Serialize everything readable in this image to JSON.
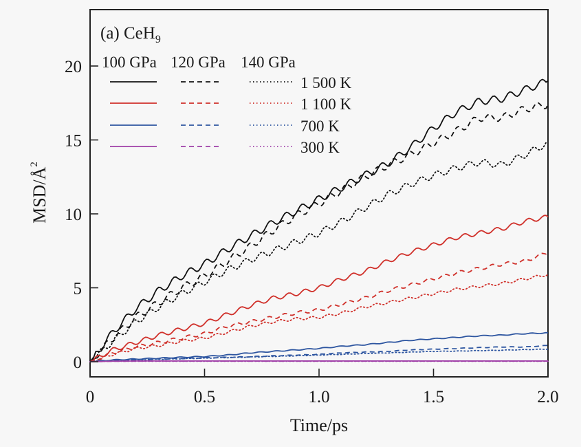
{
  "chart_data": {
    "type": "line",
    "panel_label": "(a) CeH",
    "panel_label_sub": "9",
    "xlabel": "Time/ps",
    "ylabel": "MSD/Å",
    "ylabel_sup": "2",
    "xlim": [
      0,
      2.0
    ],
    "ylim": [
      -0.5,
      23.5
    ],
    "xticks": [
      0,
      0.5,
      1.0,
      1.5,
      2.0
    ],
    "xtick_labels": [
      "0",
      "0.5",
      "1.0",
      "1.5",
      "2.0"
    ],
    "yticks": [
      0,
      5,
      10,
      15,
      20
    ],
    "ytick_labels": [
      "0",
      "5",
      "10",
      "15",
      "20"
    ],
    "grid": false,
    "legend": {
      "placement": "top-left",
      "pressure_headers": [
        "100 GPa",
        "120 GPa",
        "140 GPa"
      ],
      "temperature_labels": [
        "1 500 K",
        "1 100 K",
        "700 K",
        "300 K"
      ]
    },
    "x": [
      0,
      0.1,
      0.2,
      0.3,
      0.4,
      0.5,
      0.6,
      0.7,
      0.8,
      0.9,
      1.0,
      1.1,
      1.2,
      1.3,
      1.4,
      1.5,
      1.6,
      1.7,
      1.8,
      1.9,
      2.0
    ],
    "series": [
      {
        "name": "1 500 K, 100 GPa",
        "temperature": "1 500 K",
        "pressure": "100 GPa",
        "color": "#111111",
        "style": "solid",
        "values": [
          0,
          2.0,
          3.6,
          4.8,
          5.8,
          6.6,
          7.6,
          8.5,
          9.4,
          10.2,
          11.0,
          11.8,
          12.6,
          13.4,
          14.5,
          15.8,
          16.9,
          17.6,
          17.8,
          18.4,
          19.0
        ]
      },
      {
        "name": "1 500 K, 120 GPa",
        "temperature": "1 500 K",
        "pressure": "120 GPa",
        "color": "#111111",
        "style": "dashed",
        "values": [
          0,
          1.6,
          3.0,
          4.0,
          5.0,
          5.8,
          6.8,
          7.8,
          8.9,
          9.9,
          10.7,
          11.6,
          12.5,
          13.3,
          14.0,
          14.8,
          15.6,
          16.5,
          16.5,
          17.1,
          17.4
        ]
      },
      {
        "name": "1 500 K, 140 GPa",
        "temperature": "1 500 K",
        "pressure": "140 GPa",
        "color": "#111111",
        "style": "dotted",
        "values": [
          0,
          1.4,
          2.7,
          3.7,
          4.6,
          5.4,
          6.2,
          6.9,
          7.5,
          8.1,
          8.7,
          9.5,
          10.4,
          11.3,
          12.0,
          12.6,
          13.1,
          13.5,
          13.3,
          14.0,
          14.8
        ]
      },
      {
        "name": "1 100 K, 100 GPa",
        "temperature": "1 100 K",
        "pressure": "100 GPa",
        "color": "#d0302a",
        "style": "solid",
        "values": [
          0,
          0.8,
          1.3,
          1.8,
          2.2,
          2.6,
          3.2,
          3.8,
          4.3,
          4.6,
          5.0,
          5.6,
          6.1,
          6.8,
          7.4,
          7.9,
          8.4,
          8.7,
          9.0,
          9.5,
          9.8
        ]
      },
      {
        "name": "1 100 K, 120 GPa",
        "temperature": "1 100 K",
        "pressure": "120 GPa",
        "color": "#d0302a",
        "style": "dashed",
        "values": [
          0,
          0.6,
          1.0,
          1.3,
          1.6,
          1.9,
          2.4,
          2.7,
          3.0,
          3.3,
          3.5,
          3.9,
          4.3,
          4.8,
          5.2,
          5.6,
          6.0,
          6.3,
          6.6,
          6.8,
          7.4
        ]
      },
      {
        "name": "1 100 K, 140 GPa",
        "temperature": "1 100 K",
        "pressure": "140 GPa",
        "color": "#d0302a",
        "style": "dotted",
        "values": [
          0,
          0.5,
          0.9,
          1.1,
          1.4,
          1.6,
          2.0,
          2.4,
          2.7,
          2.9,
          3.0,
          3.3,
          3.7,
          4.0,
          4.3,
          4.6,
          4.9,
          5.1,
          5.3,
          5.6,
          5.9
        ]
      },
      {
        "name": "700 K, 100 GPa",
        "temperature": "700 K",
        "pressure": "100 GPa",
        "color": "#2d55a0",
        "style": "solid",
        "values": [
          0,
          0.12,
          0.18,
          0.24,
          0.3,
          0.35,
          0.45,
          0.6,
          0.7,
          0.8,
          0.9,
          1.05,
          1.15,
          1.3,
          1.45,
          1.55,
          1.65,
          1.75,
          1.8,
          1.9,
          1.95
        ]
      },
      {
        "name": "700 K, 120 GPa",
        "temperature": "700 K",
        "pressure": "120 GPa",
        "color": "#2d55a0",
        "style": "dashed",
        "values": [
          0,
          0.08,
          0.14,
          0.18,
          0.22,
          0.26,
          0.3,
          0.34,
          0.4,
          0.45,
          0.5,
          0.6,
          0.65,
          0.7,
          0.8,
          0.85,
          0.9,
          0.95,
          1.0,
          1.0,
          1.1
        ]
      },
      {
        "name": "700 K, 140 GPa",
        "temperature": "700 K",
        "pressure": "140 GPa",
        "color": "#2d55a0",
        "style": "dotted",
        "values": [
          0,
          0.07,
          0.12,
          0.16,
          0.2,
          0.24,
          0.28,
          0.32,
          0.36,
          0.4,
          0.45,
          0.5,
          0.55,
          0.6,
          0.65,
          0.7,
          0.72,
          0.75,
          0.78,
          0.82,
          0.85
        ]
      },
      {
        "name": "300 K, 100 GPa",
        "temperature": "300 K",
        "pressure": "100 GPa",
        "color": "#a040a8",
        "style": "solid",
        "values": [
          0,
          0.04,
          0.05,
          0.05,
          0.05,
          0.05,
          0.05,
          0.05,
          0.05,
          0.05,
          0.05,
          0.05,
          0.05,
          0.05,
          0.05,
          0.05,
          0.05,
          0.05,
          0.05,
          0.05,
          0.05
        ]
      },
      {
        "name": "300 K, 120 GPa",
        "temperature": "300 K",
        "pressure": "120 GPa",
        "color": "#a040a8",
        "style": "dashed",
        "values": [
          0,
          0.03,
          0.04,
          0.04,
          0.04,
          0.04,
          0.04,
          0.04,
          0.04,
          0.04,
          0.04,
          0.04,
          0.04,
          0.04,
          0.04,
          0.04,
          0.04,
          0.04,
          0.04,
          0.04,
          0.04
        ]
      },
      {
        "name": "300 K, 140 GPa",
        "temperature": "300 K",
        "pressure": "140 GPa",
        "color": "#a040a8",
        "style": "dotted",
        "values": [
          0,
          0.03,
          0.03,
          0.03,
          0.03,
          0.03,
          0.03,
          0.03,
          0.03,
          0.03,
          0.03,
          0.03,
          0.03,
          0.03,
          0.03,
          0.03,
          0.03,
          0.03,
          0.03,
          0.03,
          0.03
        ]
      }
    ]
  }
}
